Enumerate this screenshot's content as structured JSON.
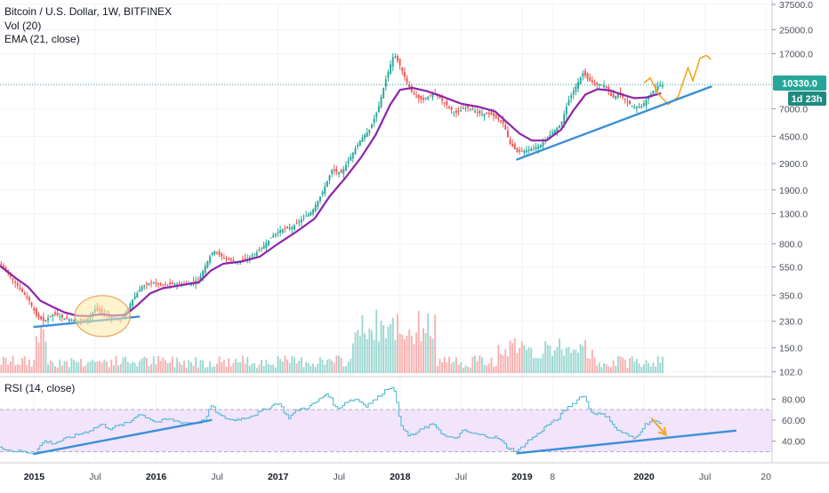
{
  "header": {
    "title": "Bitcoin / U.S. Dollar, 1W, BITFINEX",
    "vol_label": "Vol (20)",
    "ema_label": "EMA (21, close)",
    "rsi_label": "RSI (14, close)"
  },
  "price_badge": {
    "price": "10330.0",
    "countdown": "1d 23h"
  },
  "colors": {
    "up": "#26a69a",
    "down": "#ef5350",
    "ema": "#8e24aa",
    "trendline": "#3a8fd9",
    "projection": "#f5a623",
    "rsi_line": "#4bb5d0",
    "rsi_band": "#f1e4fb",
    "price_line": "#26a69a",
    "badge_bg": "#26a69a",
    "countdown_bg": "#1f8b80"
  },
  "chart_data": {
    "type": "candlestick",
    "price_scale": "log",
    "y_ticks": [
      "37500.0",
      "25000.0",
      "17000.0",
      "7000.0",
      "4500.0",
      "2900.0",
      "1900.0",
      "1300.0",
      "800.0",
      "550.0",
      "350.0",
      "230.0",
      "150.0",
      "102.0"
    ],
    "y_tick_values": [
      37500,
      25000,
      17000,
      7000,
      4500,
      2900,
      1900,
      1300,
      800,
      550,
      350,
      230,
      150,
      102
    ],
    "rsi_ticks": [
      "80.00",
      "60.00",
      "40.00"
    ],
    "rsi_tick_values": [
      80,
      60,
      40
    ],
    "x_ticks": [
      "2015",
      "Jul",
      "2016",
      "Jul",
      "2017",
      "Jul",
      "2018",
      "Jul",
      "2019",
      "8",
      "2020",
      "Jul",
      "20"
    ],
    "x_tick_values": [
      2015.0,
      2015.5,
      2016.0,
      2016.5,
      2017.0,
      2017.5,
      2018.0,
      2018.5,
      2019.0,
      2019.25,
      2020.0,
      2020.5,
      2021.0
    ],
    "x_range": [
      2014.72,
      2021.05
    ],
    "y_range": [
      100,
      38000
    ],
    "rsi_range": [
      22,
      98
    ],
    "rsi_band": [
      30,
      70
    ],
    "current_price": 10330,
    "price_path": [
      [
        2014.72,
        580
      ],
      [
        2014.8,
        480
      ],
      [
        2014.88,
        390
      ],
      [
        2014.96,
        320
      ],
      [
        2015.02,
        250
      ],
      [
        2015.08,
        230
      ],
      [
        2015.16,
        260
      ],
      [
        2015.25,
        240
      ],
      [
        2015.33,
        235
      ],
      [
        2015.42,
        230
      ],
      [
        2015.5,
        280
      ],
      [
        2015.58,
        260
      ],
      [
        2015.66,
        235
      ],
      [
        2015.72,
        240
      ],
      [
        2015.8,
        320
      ],
      [
        2015.88,
        400
      ],
      [
        2015.96,
        430
      ],
      [
        2016.05,
        410
      ],
      [
        2016.15,
        420
      ],
      [
        2016.25,
        420
      ],
      [
        2016.35,
        450
      ],
      [
        2016.42,
        600
      ],
      [
        2016.47,
        720
      ],
      [
        2016.55,
        640
      ],
      [
        2016.65,
        600
      ],
      [
        2016.75,
        630
      ],
      [
        2016.85,
        720
      ],
      [
        2016.95,
        900
      ],
      [
        2017.02,
        1000
      ],
      [
        2017.12,
        1050
      ],
      [
        2017.2,
        1200
      ],
      [
        2017.28,
        1350
      ],
      [
        2017.36,
        1800
      ],
      [
        2017.44,
        2600
      ],
      [
        2017.52,
        2500
      ],
      [
        2017.6,
        3300
      ],
      [
        2017.68,
        4300
      ],
      [
        2017.75,
        5000
      ],
      [
        2017.82,
        7000
      ],
      [
        2017.88,
        11000
      ],
      [
        2017.95,
        17000
      ],
      [
        2018.0,
        14000
      ],
      [
        2018.05,
        11000
      ],
      [
        2018.1,
        9000
      ],
      [
        2018.18,
        8000
      ],
      [
        2018.28,
        9000
      ],
      [
        2018.36,
        7800
      ],
      [
        2018.45,
        6500
      ],
      [
        2018.55,
        7200
      ],
      [
        2018.65,
        6500
      ],
      [
        2018.75,
        6400
      ],
      [
        2018.85,
        5500
      ],
      [
        2018.9,
        4000
      ],
      [
        2018.96,
        3500
      ],
      [
        2019.05,
        3600
      ],
      [
        2019.15,
        3900
      ],
      [
        2019.25,
        4800
      ],
      [
        2019.32,
        5500
      ],
      [
        2019.38,
        8000
      ],
      [
        2019.44,
        10000
      ],
      [
        2019.5,
        12500
      ],
      [
        2019.55,
        11000
      ],
      [
        2019.6,
        10500
      ],
      [
        2019.68,
        10200
      ],
      [
        2019.74,
        8300
      ],
      [
        2019.8,
        9000
      ],
      [
        2019.86,
        7800
      ],
      [
        2019.92,
        7200
      ],
      [
        2019.98,
        7300
      ],
      [
        2020.04,
        8500
      ],
      [
        2020.1,
        10000
      ],
      [
        2020.16,
        10330
      ]
    ],
    "ema_path": [
      [
        2014.72,
        560
      ],
      [
        2014.85,
        460
      ],
      [
        2014.95,
        400
      ],
      [
        2015.05,
        320
      ],
      [
        2015.15,
        290
      ],
      [
        2015.25,
        265
      ],
      [
        2015.35,
        252
      ],
      [
        2015.45,
        250
      ],
      [
        2015.55,
        258
      ],
      [
        2015.65,
        252
      ],
      [
        2015.75,
        255
      ],
      [
        2015.85,
        300
      ],
      [
        2015.95,
        360
      ],
      [
        2016.05,
        390
      ],
      [
        2016.2,
        410
      ],
      [
        2016.35,
        430
      ],
      [
        2016.45,
        520
      ],
      [
        2016.55,
        580
      ],
      [
        2016.7,
        600
      ],
      [
        2016.85,
        650
      ],
      [
        2017.0,
        800
      ],
      [
        2017.15,
        970
      ],
      [
        2017.3,
        1200
      ],
      [
        2017.42,
        1700
      ],
      [
        2017.55,
        2300
      ],
      [
        2017.68,
        3200
      ],
      [
        2017.8,
        4600
      ],
      [
        2017.92,
        7500
      ],
      [
        2018.0,
        9500
      ],
      [
        2018.1,
        9800
      ],
      [
        2018.22,
        9300
      ],
      [
        2018.35,
        8500
      ],
      [
        2018.5,
        7600
      ],
      [
        2018.65,
        7200
      ],
      [
        2018.78,
        6700
      ],
      [
        2018.88,
        5600
      ],
      [
        2018.98,
        4700
      ],
      [
        2019.08,
        4200
      ],
      [
        2019.2,
        4200
      ],
      [
        2019.32,
        5000
      ],
      [
        2019.42,
        6800
      ],
      [
        2019.52,
        8800
      ],
      [
        2019.62,
        9600
      ],
      [
        2019.72,
        9400
      ],
      [
        2019.82,
        8800
      ],
      [
        2019.92,
        8300
      ],
      [
        2020.02,
        8400
      ],
      [
        2020.14,
        9000
      ]
    ],
    "trendlines": [
      {
        "name": "price-support-2015",
        "points": [
          [
            2015.0,
            210
          ],
          [
            2015.86,
            248
          ]
        ]
      },
      {
        "name": "price-support-2019",
        "points": [
          [
            2018.96,
            3100
          ],
          [
            2020.55,
            10000
          ]
        ]
      },
      {
        "name": "rsi-support-2015",
        "pane": "rsi",
        "points": [
          [
            2015.0,
            28
          ],
          [
            2016.45,
            60
          ]
        ]
      },
      {
        "name": "rsi-support-2019",
        "pane": "rsi",
        "points": [
          [
            2018.96,
            28.5
          ],
          [
            2020.75,
            50
          ]
        ]
      }
    ],
    "projection_path": [
      [
        2020.0,
        10600
      ],
      [
        2020.05,
        11500
      ],
      [
        2020.12,
        8800
      ],
      [
        2020.2,
        7500
      ],
      [
        2020.28,
        8500
      ],
      [
        2020.36,
        13500
      ],
      [
        2020.4,
        11000
      ],
      [
        2020.46,
        15800
      ],
      [
        2020.51,
        16500
      ],
      [
        2020.55,
        15500
      ]
    ],
    "rsi_arrow": {
      "from": [
        2020.06,
        62
      ],
      "to": [
        2020.18,
        46
      ]
    },
    "ellipse_center": [
      2015.56,
      250
    ],
    "rsi_path": [
      [
        2014.72,
        35
      ],
      [
        2014.8,
        31
      ],
      [
        2014.9,
        30
      ],
      [
        2015.0,
        29
      ],
      [
        2015.08,
        40
      ],
      [
        2015.16,
        38
      ],
      [
        2015.25,
        42
      ],
      [
        2015.35,
        46
      ],
      [
        2015.45,
        50
      ],
      [
        2015.55,
        56
      ],
      [
        2015.62,
        52
      ],
      [
        2015.7,
        55
      ],
      [
        2015.78,
        58
      ],
      [
        2015.85,
        66
      ],
      [
        2015.92,
        63
      ],
      [
        2016.0,
        58
      ],
      [
        2016.1,
        61
      ],
      [
        2016.2,
        58
      ],
      [
        2016.32,
        57
      ],
      [
        2016.4,
        60
      ],
      [
        2016.45,
        74
      ],
      [
        2016.52,
        64
      ],
      [
        2016.62,
        60
      ],
      [
        2016.72,
        62
      ],
      [
        2016.82,
        66
      ],
      [
        2016.92,
        72
      ],
      [
        2017.0,
        77
      ],
      [
        2017.08,
        62
      ],
      [
        2017.16,
        70
      ],
      [
        2017.24,
        72
      ],
      [
        2017.32,
        78
      ],
      [
        2017.4,
        86
      ],
      [
        2017.48,
        70
      ],
      [
        2017.56,
        78
      ],
      [
        2017.64,
        80
      ],
      [
        2017.72,
        74
      ],
      [
        2017.8,
        80
      ],
      [
        2017.88,
        89
      ],
      [
        2017.94,
        93
      ],
      [
        2018.0,
        58
      ],
      [
        2018.06,
        45
      ],
      [
        2018.12,
        47
      ],
      [
        2018.2,
        53
      ],
      [
        2018.28,
        56
      ],
      [
        2018.36,
        45
      ],
      [
        2018.44,
        42
      ],
      [
        2018.52,
        50
      ],
      [
        2018.6,
        47
      ],
      [
        2018.7,
        45
      ],
      [
        2018.8,
        43
      ],
      [
        2018.88,
        34
      ],
      [
        2018.96,
        30
      ],
      [
        2019.04,
        40
      ],
      [
        2019.12,
        46
      ],
      [
        2019.2,
        55
      ],
      [
        2019.28,
        60
      ],
      [
        2019.36,
        71
      ],
      [
        2019.44,
        78
      ],
      [
        2019.5,
        85
      ],
      [
        2019.56,
        68
      ],
      [
        2019.62,
        66
      ],
      [
        2019.7,
        64
      ],
      [
        2019.76,
        52
      ],
      [
        2019.84,
        47
      ],
      [
        2019.92,
        42
      ],
      [
        2020.0,
        55
      ],
      [
        2020.06,
        60
      ],
      [
        2020.14,
        56
      ]
    ]
  }
}
